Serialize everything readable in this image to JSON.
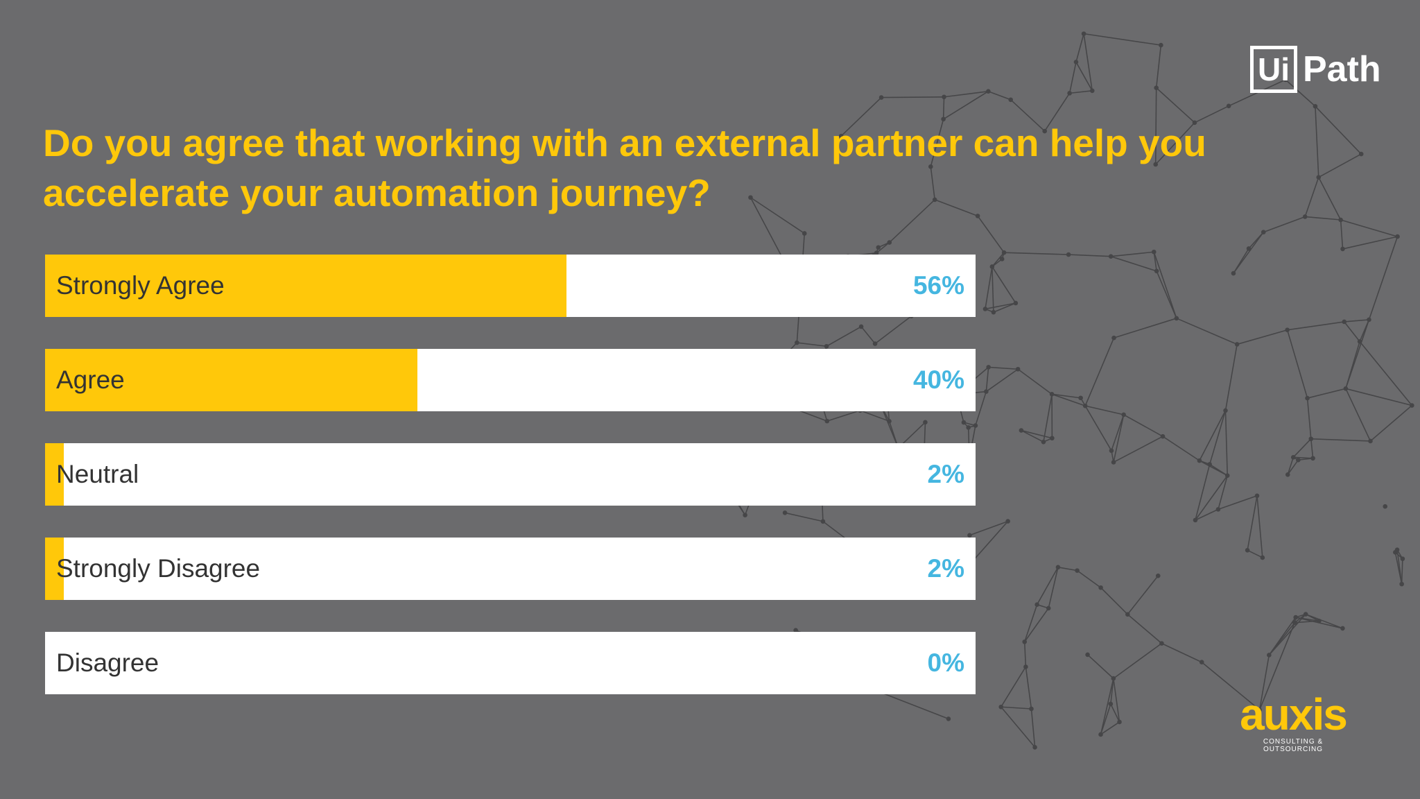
{
  "title": "Do you agree that working with an external partner can help you accelerate your automation journey?",
  "logos": {
    "uipath": {
      "box_text": "Ui",
      "text": "Path"
    },
    "auxis": {
      "word": "auxis",
      "tagline": "CONSULTING & OUTSOURCING"
    }
  },
  "colors": {
    "background": "#6b6b6d",
    "accent": "#ffc80a",
    "value": "#45b6e0",
    "track": "#ffffff"
  },
  "chart_data": {
    "type": "bar",
    "orientation": "horizontal",
    "title": "Do you agree that working with an external partner can help you accelerate your automation journey?",
    "categories": [
      "Strongly Agree",
      "Agree",
      "Neutral",
      "Strongly Disagree",
      "Disagree"
    ],
    "values": [
      56,
      40,
      2,
      2,
      0
    ],
    "value_labels": [
      "56%",
      "40%",
      "2%",
      "2%",
      "0%"
    ],
    "unit": "%",
    "xlim": [
      0,
      100
    ],
    "grid": false
  }
}
